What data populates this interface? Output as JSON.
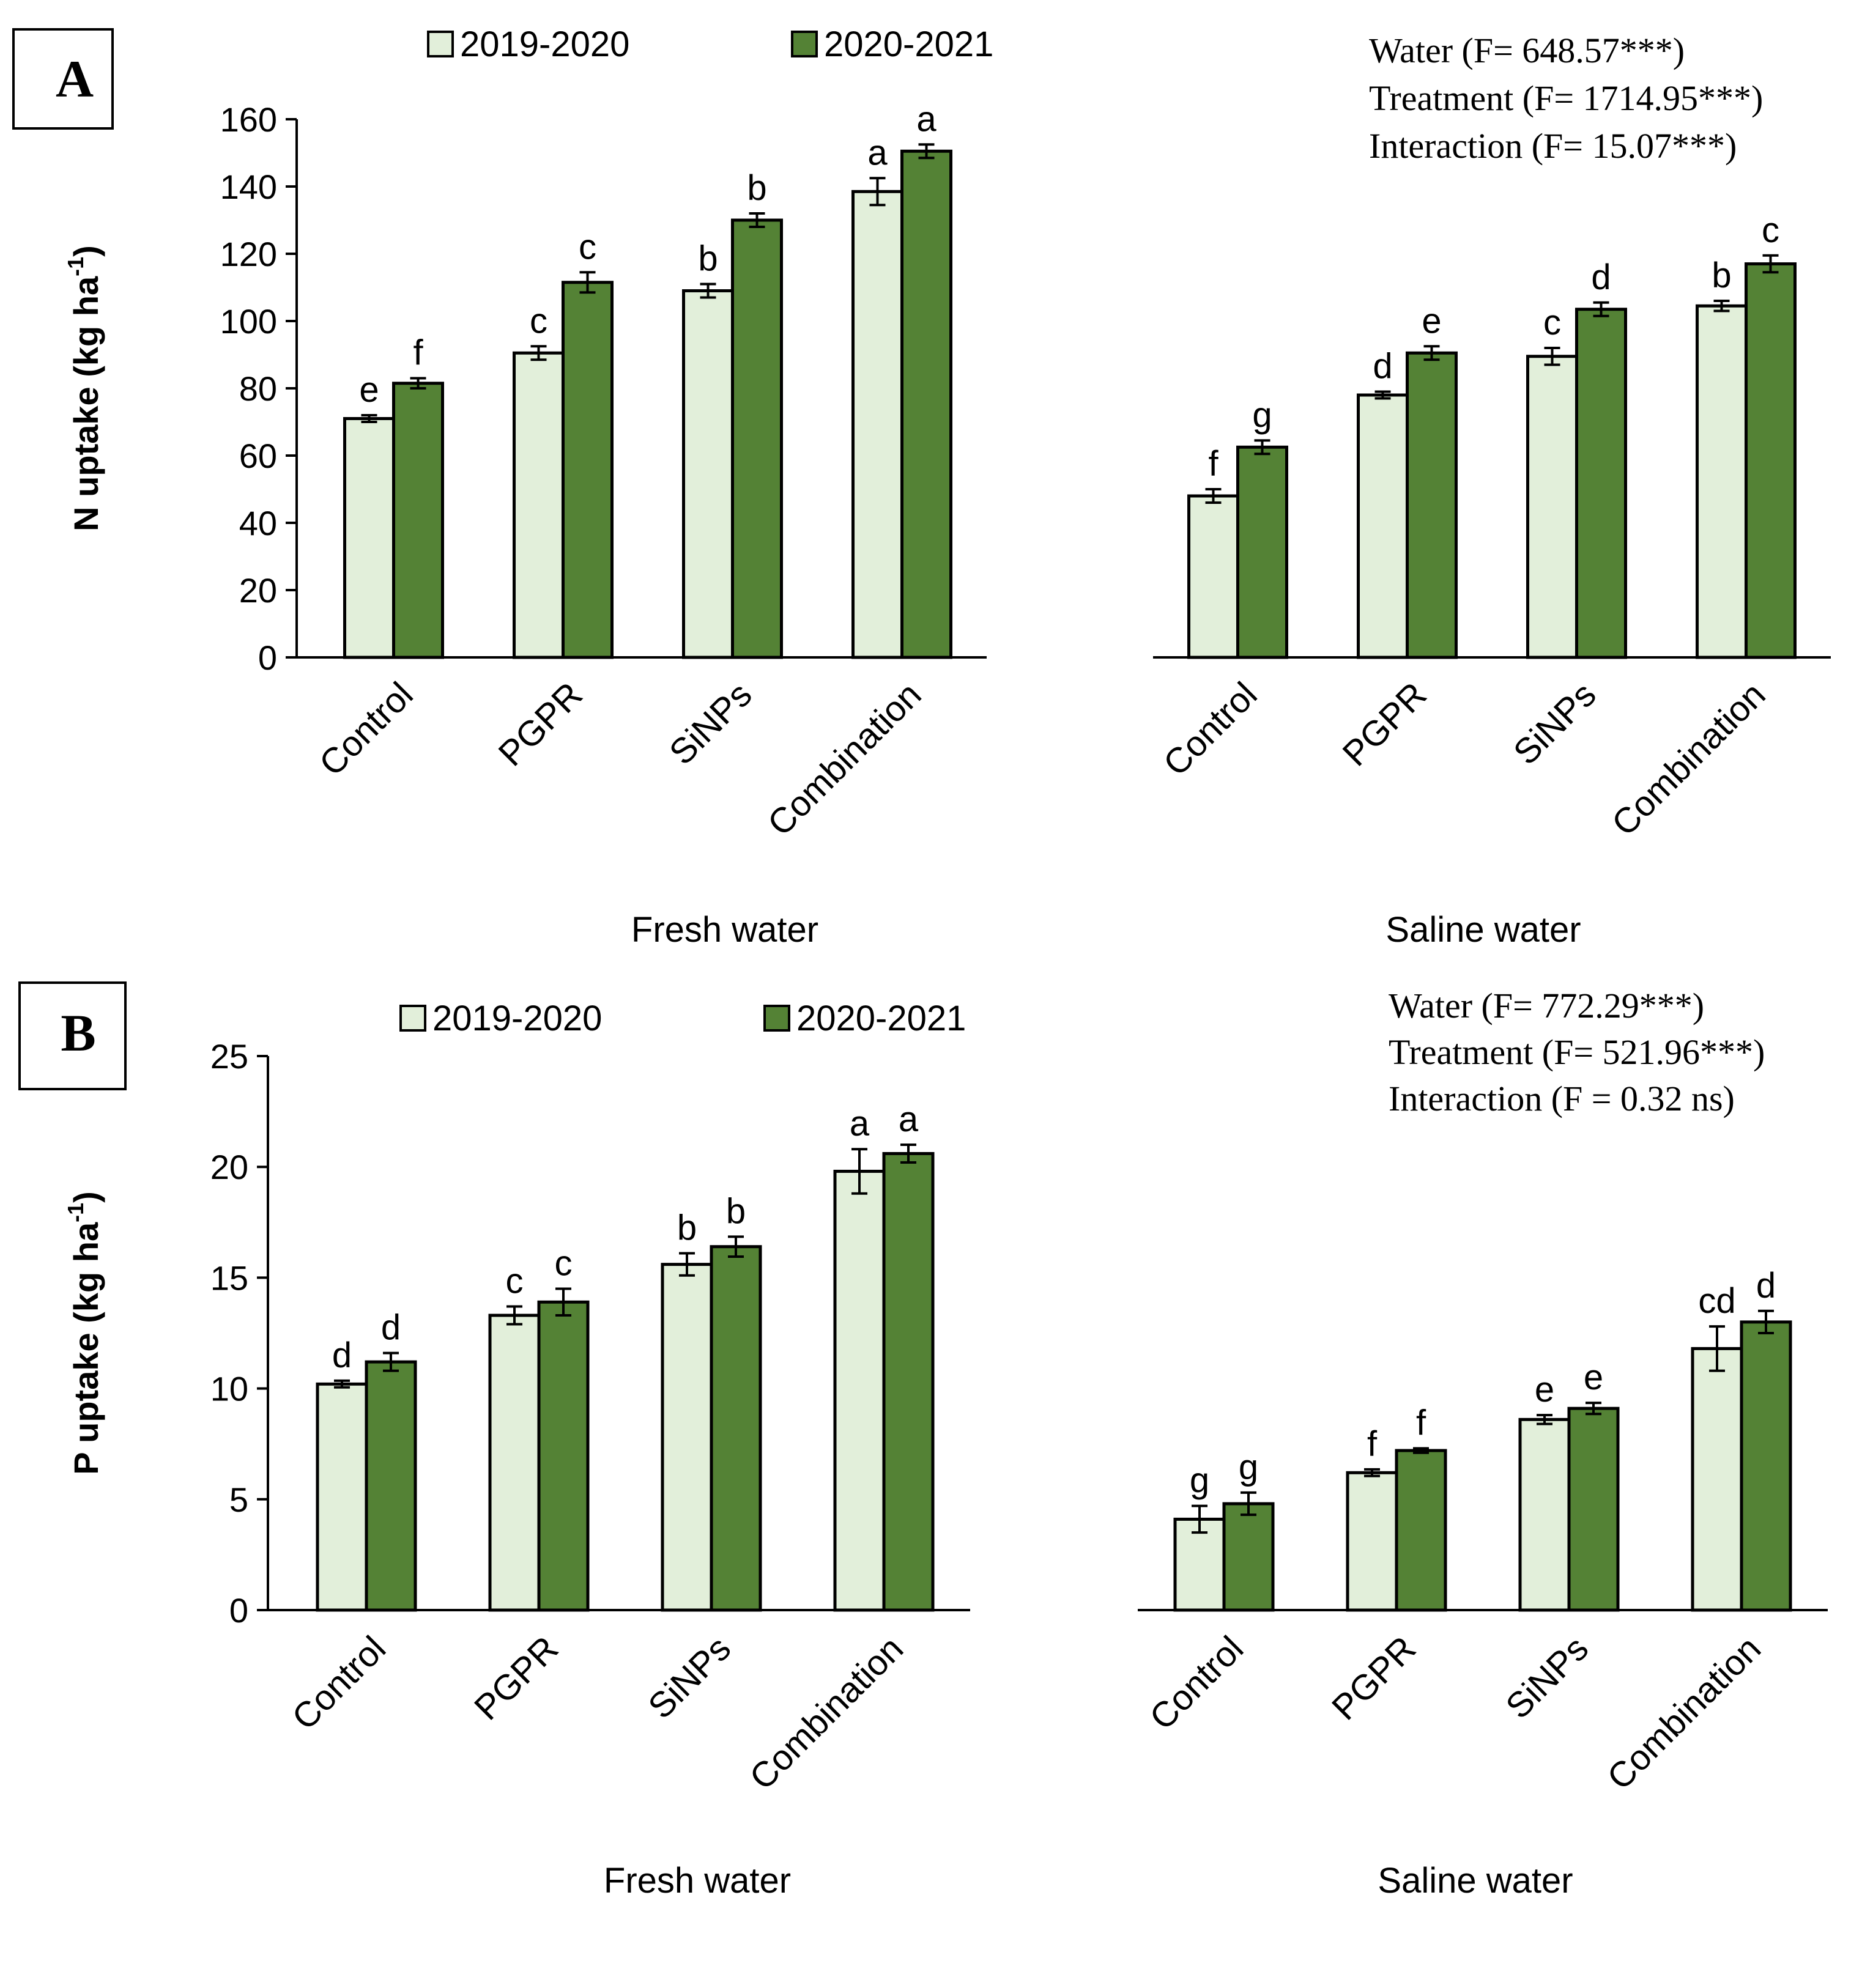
{
  "colors": {
    "light": "#e2efda",
    "dark": "#548235",
    "axis": "#000000"
  },
  "chart_data": [
    {
      "type": "bar",
      "panel_label": "A",
      "ylabel_main": "N uptake (kg ha",
      "ylabel_sup": "-1",
      "ylabel_close": ")",
      "ylim": [
        0,
        160
      ],
      "yticks": [
        "0",
        "20",
        "40",
        "60",
        "80",
        "100",
        "120",
        "140",
        "160"
      ],
      "legend": [
        "2019-2020",
        "2020-2021"
      ],
      "stats": [
        "Water (F= 648.57***)",
        "Treatment (F= 1714.95***)",
        "Interaction (F= 15.07***)"
      ],
      "groups": [
        {
          "name": "Fresh water",
          "categories": [
            "Control",
            "PGPR",
            "SiNPs",
            "Combination"
          ],
          "series": [
            {
              "name": "2019-2020",
              "values": [
                71,
                90.5,
                109,
                138.5
              ],
              "errors": [
                1,
                2,
                2,
                4
              ],
              "letters": [
                "e",
                "c",
                "b",
                "a"
              ]
            },
            {
              "name": "2020-2021",
              "values": [
                81.5,
                111.5,
                130,
                150.5
              ],
              "errors": [
                1.5,
                3,
                2,
                2
              ],
              "letters": [
                "f",
                "c",
                "b",
                "a"
              ]
            }
          ]
        },
        {
          "name": "Saline water",
          "categories": [
            "Control",
            "PGPR",
            "SiNPs",
            "Combination"
          ],
          "series": [
            {
              "name": "2019-2020",
              "values": [
                48,
                78,
                89.5,
                104.5
              ],
              "errors": [
                2,
                1,
                2.5,
                1.5
              ],
              "letters": [
                "f",
                "d",
                "c",
                "b"
              ]
            },
            {
              "name": "2020-2021",
              "values": [
                62.5,
                90.5,
                103.5,
                117
              ],
              "errors": [
                2,
                2,
                2,
                2.5
              ],
              "letters": [
                "g",
                "e",
                "d",
                "c"
              ]
            }
          ]
        }
      ]
    },
    {
      "type": "bar",
      "panel_label": "B",
      "ylabel_main": "P uptake (kg ha",
      "ylabel_sup": "-1",
      "ylabel_close": ")",
      "ylim": [
        0,
        25
      ],
      "yticks": [
        "0",
        "5",
        "10",
        "15",
        "20",
        "25"
      ],
      "legend": [
        "2019-2020",
        "2020-2021"
      ],
      "stats": [
        "Water (F= 772.29***)",
        "Treatment (F= 521.96***)",
        "Interaction (F = 0.32 ns)"
      ],
      "groups": [
        {
          "name": "Fresh water",
          "categories": [
            "Control",
            "PGPR",
            "SiNPs",
            "Combination"
          ],
          "series": [
            {
              "name": "2019-2020",
              "values": [
                10.2,
                13.3,
                15.6,
                19.8
              ],
              "errors": [
                0.15,
                0.4,
                0.5,
                1.0
              ],
              "letters": [
                "d",
                "c",
                "b",
                "a"
              ]
            },
            {
              "name": "2020-2021",
              "values": [
                11.2,
                13.9,
                16.4,
                20.6
              ],
              "errors": [
                0.4,
                0.6,
                0.45,
                0.4
              ],
              "letters": [
                "d",
                "c",
                "b",
                "a"
              ]
            }
          ]
        },
        {
          "name": "Saline water",
          "categories": [
            "Control",
            "PGPR",
            "SiNPs",
            "Combination"
          ],
          "series": [
            {
              "name": "2019-2020",
              "values": [
                4.1,
                6.2,
                8.6,
                11.8
              ],
              "errors": [
                0.6,
                0.15,
                0.2,
                1.0
              ],
              "letters": [
                "g",
                "f",
                "e",
                "cd"
              ]
            },
            {
              "name": "2020-2021",
              "values": [
                4.8,
                7.2,
                9.1,
                13.0
              ],
              "errors": [
                0.5,
                0.1,
                0.25,
                0.5
              ],
              "letters": [
                "g",
                "f",
                "e",
                "d"
              ]
            }
          ]
        }
      ]
    }
  ]
}
